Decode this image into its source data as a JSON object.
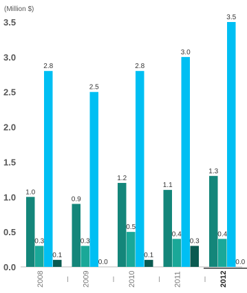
{
  "chart_data": {
    "type": "bar",
    "ylabel": "(Million $)",
    "ylim": [
      0,
      3.5
    ],
    "yticks": [
      "0.0",
      "0.5",
      "1.0",
      "1.5",
      "2.0",
      "2.5",
      "3.0",
      "3.5"
    ],
    "categories": [
      "2008",
      "2009",
      "2010",
      "2011",
      "2012"
    ],
    "highlight_category": "2012",
    "grid": false,
    "series": [
      {
        "color": "#14867a",
        "values": [
          1.0,
          0.9,
          1.2,
          1.1,
          1.3
        ],
        "labels": [
          "1.0",
          "0.9",
          "1.2",
          "1.1",
          "1.3"
        ]
      },
      {
        "color": "#1aa898",
        "values": [
          0.3,
          0.3,
          0.5,
          0.4,
          0.4
        ],
        "labels": [
          "0.3",
          "0.3",
          "0.5",
          "0.4",
          "0.4"
        ]
      },
      {
        "color": "#00bff3",
        "values": [
          2.8,
          2.5,
          2.8,
          3.0,
          3.5
        ],
        "labels": [
          "2.8",
          "2.5",
          "2.8",
          "3.0",
          "3.5"
        ]
      },
      {
        "color": "#0a5a50",
        "values": [
          0.1,
          0.0,
          0.1,
          0.3,
          0.0
        ],
        "labels": [
          "0.1",
          "0.0",
          "0.1",
          "0.3",
          "0.0"
        ]
      }
    ]
  }
}
